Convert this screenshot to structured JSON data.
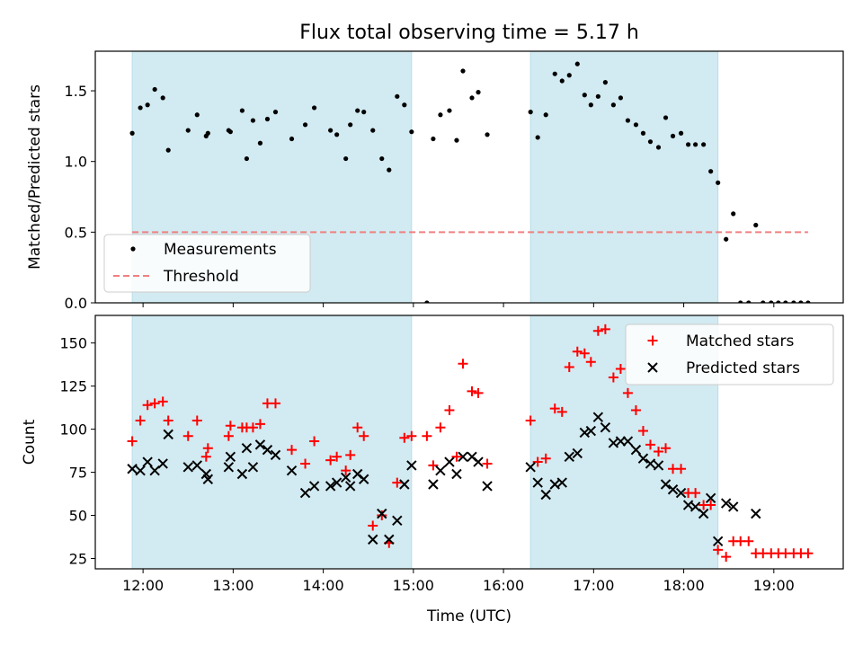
{
  "chart_data": {
    "title": "Flux total observing time = 5.17 h",
    "xlabel": "Time (UTC)",
    "x_tick_labels": [
      "12:00",
      "13:00",
      "14:00",
      "15:00",
      "16:00",
      "17:00",
      "18:00",
      "19:00"
    ],
    "x_ticks_hours": [
      12,
      13,
      14,
      15,
      16,
      17,
      18,
      19
    ],
    "xlim_hours": [
      11.47,
      19.77
    ],
    "shaded_intervals_hours": [
      [
        11.88,
        14.98
      ],
      [
        16.3,
        18.38
      ]
    ],
    "shade_color": "#add8e6",
    "panels": [
      {
        "type": "scatter",
        "ylabel": "Matched/Predicted stars",
        "ylim": [
          0,
          1.78
        ],
        "y_ticks": [
          0.0,
          0.5,
          1.0,
          1.5
        ],
        "y_tick_labels": [
          "0.0",
          "0.5",
          "1.0",
          "1.5"
        ],
        "legend": {
          "location": "lower-left",
          "entries": [
            "Measurements",
            "Threshold"
          ]
        },
        "series": [
          {
            "name": "Measurements",
            "marker": "dot",
            "color": "#000000",
            "points": [
              [
                11.88,
                1.2
              ],
              [
                11.97,
                1.38
              ],
              [
                12.05,
                1.4
              ],
              [
                12.13,
                1.51
              ],
              [
                12.22,
                1.45
              ],
              [
                12.28,
                1.08
              ],
              [
                12.5,
                1.22
              ],
              [
                12.6,
                1.33
              ],
              [
                12.7,
                1.18
              ],
              [
                12.72,
                1.2
              ],
              [
                12.95,
                1.22
              ],
              [
                12.97,
                1.21
              ],
              [
                13.1,
                1.36
              ],
              [
                13.15,
                1.02
              ],
              [
                13.22,
                1.29
              ],
              [
                13.3,
                1.13
              ],
              [
                13.38,
                1.3
              ],
              [
                13.47,
                1.35
              ],
              [
                13.65,
                1.16
              ],
              [
                13.8,
                1.26
              ],
              [
                13.9,
                1.38
              ],
              [
                14.08,
                1.22
              ],
              [
                14.15,
                1.19
              ],
              [
                14.25,
                1.02
              ],
              [
                14.3,
                1.26
              ],
              [
                14.38,
                1.36
              ],
              [
                14.45,
                1.35
              ],
              [
                14.55,
                1.22
              ],
              [
                14.65,
                1.02
              ],
              [
                14.73,
                0.94
              ],
              [
                14.82,
                1.46
              ],
              [
                14.9,
                1.4
              ],
              [
                14.98,
                1.21
              ],
              [
                15.15,
                0.0
              ],
              [
                15.22,
                1.16
              ],
              [
                15.3,
                1.33
              ],
              [
                15.4,
                1.36
              ],
              [
                15.48,
                1.15
              ],
              [
                15.55,
                1.64
              ],
              [
                15.65,
                1.45
              ],
              [
                15.72,
                1.49
              ],
              [
                15.82,
                1.19
              ],
              [
                16.3,
                1.35
              ],
              [
                16.38,
                1.17
              ],
              [
                16.47,
                1.33
              ],
              [
                16.57,
                1.62
              ],
              [
                16.65,
                1.57
              ],
              [
                16.73,
                1.61
              ],
              [
                16.82,
                1.69
              ],
              [
                16.9,
                1.47
              ],
              [
                16.97,
                1.4
              ],
              [
                17.05,
                1.46
              ],
              [
                17.13,
                1.56
              ],
              [
                17.22,
                1.4
              ],
              [
                17.3,
                1.45
              ],
              [
                17.38,
                1.29
              ],
              [
                17.47,
                1.26
              ],
              [
                17.55,
                1.2
              ],
              [
                17.63,
                1.14
              ],
              [
                17.72,
                1.1
              ],
              [
                17.8,
                1.31
              ],
              [
                17.88,
                1.18
              ],
              [
                17.97,
                1.2
              ],
              [
                18.05,
                1.12
              ],
              [
                18.13,
                1.12
              ],
              [
                18.22,
                1.12
              ],
              [
                18.3,
                0.93
              ],
              [
                18.38,
                0.85
              ],
              [
                18.47,
                0.45
              ],
              [
                18.55,
                0.63
              ],
              [
                18.63,
                0.0
              ],
              [
                18.72,
                0.0
              ],
              [
                18.8,
                0.55
              ],
              [
                18.88,
                0.0
              ],
              [
                18.97,
                0.0
              ],
              [
                19.05,
                0.0
              ],
              [
                19.13,
                0.0
              ],
              [
                19.22,
                0.0
              ],
              [
                19.3,
                0.0
              ],
              [
                19.38,
                0.0
              ]
            ]
          },
          {
            "name": "Threshold",
            "marker": "dashed-line",
            "color": "#f08080",
            "points": [
              [
                11.88,
                0.5
              ],
              [
                19.38,
                0.5
              ]
            ]
          }
        ]
      },
      {
        "type": "scatter",
        "ylabel": "Count",
        "ylim": [
          19,
          166
        ],
        "y_ticks": [
          25,
          50,
          75,
          100,
          125,
          150
        ],
        "y_tick_labels": [
          "25",
          "50",
          "75",
          "100",
          "125",
          "150"
        ],
        "legend": {
          "location": "top-right",
          "entries": [
            "Matched stars",
            "Predicted stars"
          ]
        },
        "series": [
          {
            "name": "Matched stars",
            "marker": "plus",
            "color": "#ff0000",
            "points": [
              [
                11.88,
                93
              ],
              [
                11.97,
                105
              ],
              [
                12.05,
                114
              ],
              [
                12.13,
                115
              ],
              [
                12.22,
                116
              ],
              [
                12.28,
                105
              ],
              [
                12.5,
                96
              ],
              [
                12.6,
                105
              ],
              [
                12.7,
                84
              ],
              [
                12.72,
                89
              ],
              [
                12.95,
                96
              ],
              [
                12.97,
                102
              ],
              [
                13.1,
                101
              ],
              [
                13.15,
                101
              ],
              [
                13.22,
                101
              ],
              [
                13.3,
                103
              ],
              [
                13.38,
                115
              ],
              [
                13.47,
                115
              ],
              [
                13.65,
                88
              ],
              [
                13.8,
                80
              ],
              [
                13.9,
                93
              ],
              [
                14.08,
                82
              ],
              [
                14.15,
                84
              ],
              [
                14.25,
                76
              ],
              [
                14.3,
                85
              ],
              [
                14.38,
                101
              ],
              [
                14.45,
                96
              ],
              [
                14.55,
                44
              ],
              [
                14.65,
                50
              ],
              [
                14.73,
                34
              ],
              [
                14.82,
                69
              ],
              [
                14.9,
                95
              ],
              [
                14.98,
                96
              ],
              [
                15.15,
                96
              ],
              [
                15.22,
                79
              ],
              [
                15.3,
                101
              ],
              [
                15.4,
                111
              ],
              [
                15.48,
                84
              ],
              [
                15.55,
                138
              ],
              [
                15.65,
                122
              ],
              [
                15.72,
                121
              ],
              [
                15.82,
                80
              ],
              [
                16.3,
                105
              ],
              [
                16.38,
                81
              ],
              [
                16.47,
                83
              ],
              [
                16.57,
                112
              ],
              [
                16.65,
                110
              ],
              [
                16.73,
                136
              ],
              [
                16.82,
                145
              ],
              [
                16.9,
                144
              ],
              [
                16.97,
                139
              ],
              [
                17.05,
                157
              ],
              [
                17.13,
                158
              ],
              [
                17.22,
                130
              ],
              [
                17.3,
                135
              ],
              [
                17.38,
                121
              ],
              [
                17.47,
                111
              ],
              [
                17.55,
                99
              ],
              [
                17.63,
                91
              ],
              [
                17.72,
                87
              ],
              [
                17.8,
                89
              ],
              [
                17.88,
                77
              ],
              [
                17.97,
                77
              ],
              [
                18.05,
                63
              ],
              [
                18.13,
                63
              ],
              [
                18.22,
                56
              ],
              [
                18.3,
                56
              ],
              [
                18.38,
                30
              ],
              [
                18.47,
                26
              ],
              [
                18.55,
                35
              ],
              [
                18.63,
                35
              ],
              [
                18.72,
                35
              ],
              [
                18.8,
                28
              ],
              [
                18.88,
                28
              ],
              [
                18.97,
                28
              ],
              [
                19.05,
                28
              ],
              [
                19.13,
                28
              ],
              [
                19.22,
                28
              ],
              [
                19.3,
                28
              ],
              [
                19.38,
                28
              ]
            ]
          },
          {
            "name": "Predicted stars",
            "marker": "x",
            "color": "#000000",
            "points": [
              [
                11.88,
                77
              ],
              [
                11.97,
                76
              ],
              [
                12.05,
                81
              ],
              [
                12.13,
                76
              ],
              [
                12.22,
                80
              ],
              [
                12.28,
                97
              ],
              [
                12.5,
                78
              ],
              [
                12.6,
                79
              ],
              [
                12.7,
                74
              ],
              [
                12.72,
                71
              ],
              [
                12.95,
                78
              ],
              [
                12.97,
                84
              ],
              [
                13.1,
                74
              ],
              [
                13.15,
                89
              ],
              [
                13.22,
                78
              ],
              [
                13.3,
                91
              ],
              [
                13.38,
                88
              ],
              [
                13.47,
                85
              ],
              [
                13.65,
                76
              ],
              [
                13.8,
                63
              ],
              [
                13.9,
                67
              ],
              [
                14.08,
                67
              ],
              [
                14.15,
                69
              ],
              [
                14.25,
                72
              ],
              [
                14.3,
                67
              ],
              [
                14.38,
                74
              ],
              [
                14.45,
                71
              ],
              [
                14.55,
                36
              ],
              [
                14.65,
                51
              ],
              [
                14.73,
                36
              ],
              [
                14.82,
                47
              ],
              [
                14.9,
                68
              ],
              [
                14.98,
                79
              ],
              [
                15.22,
                68
              ],
              [
                15.3,
                76
              ],
              [
                15.4,
                81
              ],
              [
                15.48,
                74
              ],
              [
                15.55,
                84
              ],
              [
                15.65,
                84
              ],
              [
                15.72,
                81
              ],
              [
                15.82,
                67
              ],
              [
                16.3,
                78
              ],
              [
                16.38,
                69
              ],
              [
                16.47,
                62
              ],
              [
                16.57,
                68
              ],
              [
                16.65,
                69
              ],
              [
                16.73,
                84
              ],
              [
                16.82,
                86
              ],
              [
                16.9,
                98
              ],
              [
                16.97,
                99
              ],
              [
                17.05,
                107
              ],
              [
                17.13,
                101
              ],
              [
                17.22,
                92
              ],
              [
                17.3,
                93
              ],
              [
                17.38,
                93
              ],
              [
                17.47,
                88
              ],
              [
                17.55,
                83
              ],
              [
                17.63,
                80
              ],
              [
                17.72,
                79
              ],
              [
                17.8,
                68
              ],
              [
                17.88,
                65
              ],
              [
                17.97,
                63
              ],
              [
                18.05,
                56
              ],
              [
                18.13,
                55
              ],
              [
                18.22,
                51
              ],
              [
                18.3,
                60
              ],
              [
                18.38,
                35
              ],
              [
                18.47,
                57
              ],
              [
                18.55,
                55
              ],
              [
                18.8,
                51
              ]
            ]
          }
        ]
      }
    ]
  }
}
